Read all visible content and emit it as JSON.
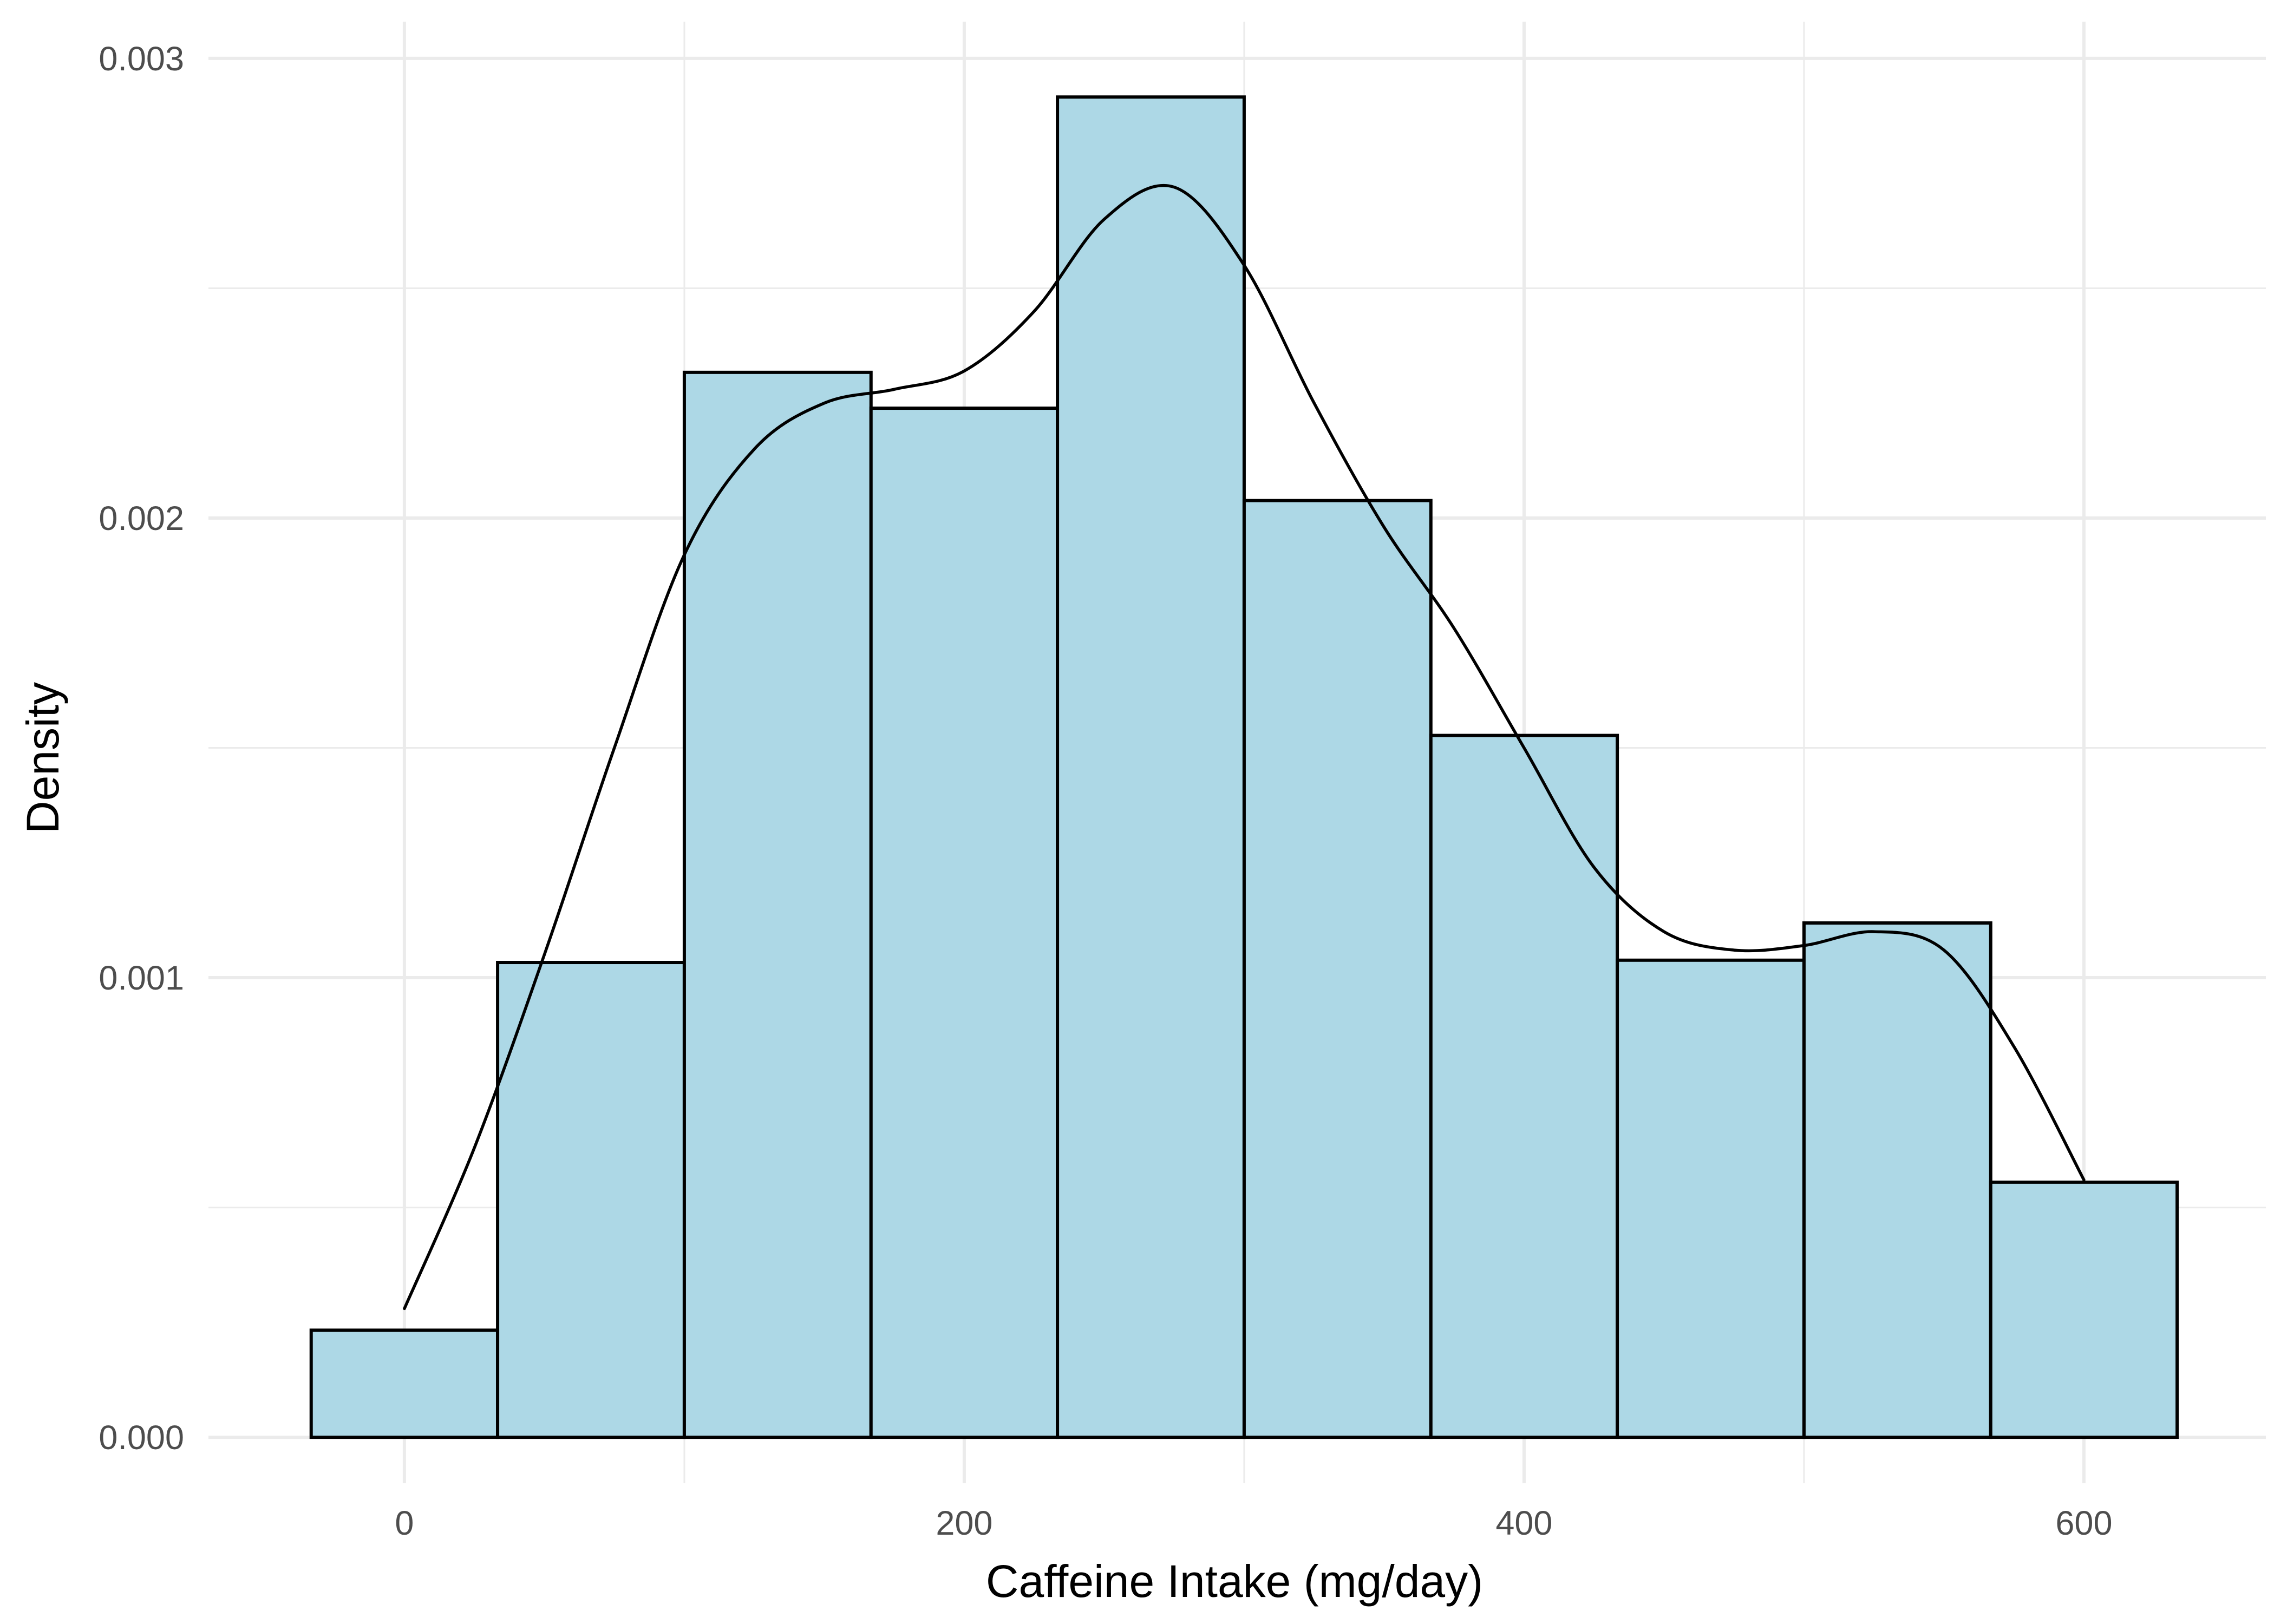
{
  "chart_data": {
    "type": "bar",
    "subtype": "histogram-with-density",
    "title": "",
    "xlabel": "Caffeine Intake (mg/day)",
    "ylabel": "Density",
    "xlim": [
      -70,
      665
    ],
    "ylim": [
      -0.0001,
      0.00308
    ],
    "x_ticks": [
      {
        "value": 0,
        "label": "0"
      },
      {
        "value": 200,
        "label": "200"
      },
      {
        "value": 400,
        "label": "400"
      },
      {
        "value": 600,
        "label": "600"
      }
    ],
    "y_ticks": [
      {
        "value": 0,
        "label": "0.000"
      },
      {
        "value": 0.001,
        "label": "0.001"
      },
      {
        "value": 0.002,
        "label": "0.002"
      },
      {
        "value": 0.003,
        "label": "0.003"
      }
    ],
    "grid": true,
    "bar_fill": "#add8e6",
    "bar_outline": "#000000",
    "line_color": "#000000",
    "grid_color": "#ebebeb",
    "bins": [
      {
        "x0": -33.3,
        "x1": 33.3,
        "density": 0.000233
      },
      {
        "x0": 33.3,
        "x1": 100,
        "density": 0.001033
      },
      {
        "x0": 100,
        "x1": 166.7,
        "density": 0.002317
      },
      {
        "x0": 166.7,
        "x1": 233.3,
        "density": 0.002239
      },
      {
        "x0": 233.3,
        "x1": 300,
        "density": 0.002916
      },
      {
        "x0": 300,
        "x1": 366.7,
        "density": 0.002038
      },
      {
        "x0": 366.7,
        "x1": 433.3,
        "density": 0.001527
      },
      {
        "x0": 433.3,
        "x1": 500,
        "density": 0.001038
      },
      {
        "x0": 500,
        "x1": 566.7,
        "density": 0.001119
      },
      {
        "x0": 566.7,
        "x1": 633.3,
        "density": 0.000555
      }
    ],
    "density_curve": {
      "x": [
        0,
        25,
        50,
        75,
        100,
        125,
        150,
        175,
        200,
        225,
        250,
        275,
        300,
        325,
        350,
        375,
        400,
        425,
        450,
        475,
        500,
        525,
        550,
        575,
        600
      ],
      "y": [
        0.00028,
        0.00063,
        0.00105,
        0.0015,
        0.00192,
        0.00215,
        0.00225,
        0.00228,
        0.00232,
        0.00245,
        0.00265,
        0.00272,
        0.00255,
        0.00225,
        0.00198,
        0.00176,
        0.0015,
        0.00124,
        0.0011,
        0.00106,
        0.00107,
        0.0011,
        0.00106,
        0.00085,
        0.00056
      ]
    }
  }
}
